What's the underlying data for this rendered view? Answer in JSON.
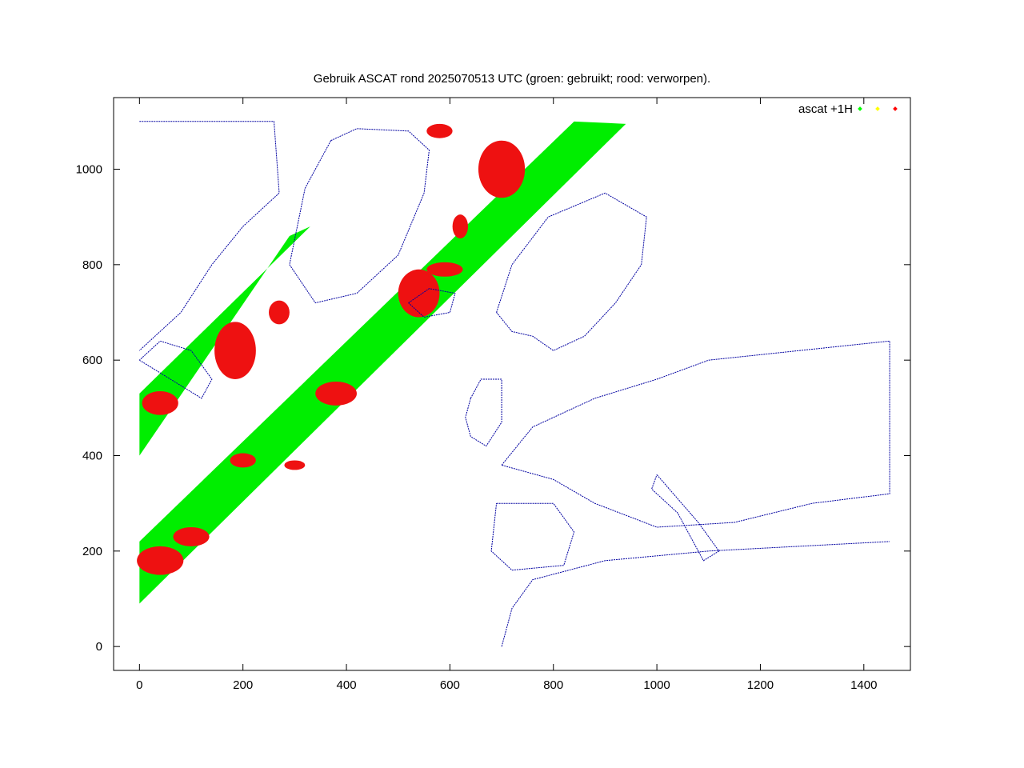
{
  "chart_data": {
    "type": "scatter",
    "title": "Gebruik ASCAT rond 2025070513 UTC (groen: gebruikt; rood: verworpen).",
    "xlim": [
      -50,
      1490
    ],
    "ylim": [
      -50,
      1150
    ],
    "xticks": [
      0,
      200,
      400,
      600,
      800,
      1000,
      1200,
      1400
    ],
    "yticks": [
      0,
      200,
      400,
      600,
      800,
      1000
    ],
    "grid": false,
    "legend": {
      "label": "ascat +1H",
      "position": "top-right",
      "markers": [
        "#00ff00",
        "#ffff00",
        "#ff0000"
      ]
    },
    "colors": {
      "used": "#00ee00",
      "rejected": "#ee1111",
      "coast": "#0000a0"
    },
    "swaths": [
      {
        "name": "",
        "start": [
          0,
          90
        ],
        "end": [
          940,
          1095
        ],
        "upper_start": [
          0,
          220
        ],
        "upper_end": [
          840,
          1100
        ]
      },
      {
        "name": "",
        "start": [
          0,
          400
        ],
        "end": [
          290,
          860
        ],
        "upper_start": [
          0,
          530
        ],
        "upper_end": [
          330,
          880
        ]
      }
    ],
    "rejected_regions": [
      {
        "x": 40,
        "y": 180,
        "rx": 45,
        "ry": 30
      },
      {
        "x": 100,
        "y": 230,
        "rx": 35,
        "ry": 20
      },
      {
        "x": 200,
        "y": 390,
        "rx": 25,
        "ry": 15
      },
      {
        "x": 300,
        "y": 380,
        "rx": 20,
        "ry": 10
      },
      {
        "x": 380,
        "y": 530,
        "rx": 40,
        "ry": 25
      },
      {
        "x": 540,
        "y": 740,
        "rx": 40,
        "ry": 50
      },
      {
        "x": 590,
        "y": 790,
        "rx": 35,
        "ry": 15
      },
      {
        "x": 620,
        "y": 880,
        "rx": 15,
        "ry": 25
      },
      {
        "x": 700,
        "y": 1000,
        "rx": 45,
        "ry": 60
      },
      {
        "x": 580,
        "y": 1080,
        "rx": 25,
        "ry": 15
      },
      {
        "x": 185,
        "y": 620,
        "rx": 40,
        "ry": 60
      },
      {
        "x": 270,
        "y": 700,
        "rx": 20,
        "ry": 25
      },
      {
        "x": 40,
        "y": 510,
        "rx": 35,
        "ry": 25
      }
    ]
  }
}
